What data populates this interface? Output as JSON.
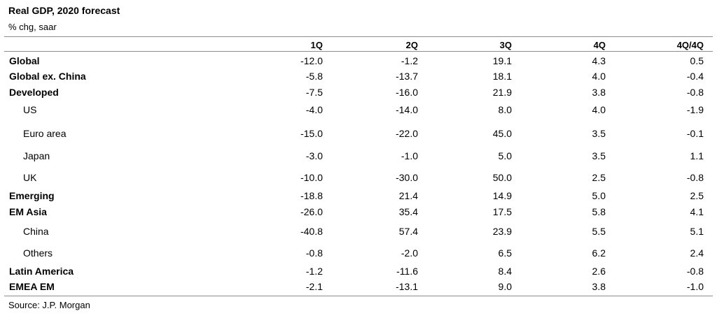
{
  "title": "Real GDP, 2020 forecast",
  "subtitle": "% chg, saar",
  "source": "Source: J.P. Morgan",
  "chart_data": {
    "type": "table",
    "title": "Real GDP, 2020 forecast",
    "subtitle": "% chg, saar",
    "columns": [
      "1Q",
      "2Q",
      "3Q",
      "4Q",
      "4Q/4Q"
    ],
    "rows": [
      {
        "label": "Global",
        "bold": true,
        "indent": false,
        "values": [
          "-12.0",
          "-1.2",
          "19.1",
          "4.3",
          "0.5"
        ]
      },
      {
        "label": "Global ex. China",
        "bold": true,
        "indent": false,
        "values": [
          "-5.8",
          "-13.7",
          "18.1",
          "4.0",
          "-0.4"
        ]
      },
      {
        "label": "Developed",
        "bold": true,
        "indent": false,
        "values": [
          "-7.5",
          "-16.0",
          "21.9",
          "3.8",
          "-0.8"
        ]
      },
      {
        "label": "US",
        "bold": false,
        "indent": true,
        "values": [
          "-4.0",
          "-14.0",
          "8.0",
          "4.0",
          "-1.9"
        ]
      },
      {
        "label": "Euro area",
        "bold": false,
        "indent": true,
        "values": [
          "-15.0",
          "-22.0",
          "45.0",
          "3.5",
          "-0.1"
        ]
      },
      {
        "label": "Japan",
        "bold": false,
        "indent": true,
        "values": [
          "-3.0",
          "-1.0",
          "5.0",
          "3.5",
          "1.1"
        ]
      },
      {
        "label": "UK",
        "bold": false,
        "indent": true,
        "values": [
          "-10.0",
          "-30.0",
          "50.0",
          "2.5",
          "-0.8"
        ]
      },
      {
        "label": "Emerging",
        "bold": true,
        "indent": false,
        "values": [
          "-18.8",
          "21.4",
          "14.9",
          "5.0",
          "2.5"
        ]
      },
      {
        "label": "EM Asia",
        "bold": true,
        "indent": false,
        "values": [
          "-26.0",
          "35.4",
          "17.5",
          "5.8",
          "4.1"
        ]
      },
      {
        "label": "China",
        "bold": false,
        "indent": true,
        "values": [
          "-40.8",
          "57.4",
          "23.9",
          "5.5",
          "5.1"
        ]
      },
      {
        "label": "Others",
        "bold": false,
        "indent": true,
        "values": [
          "-0.8",
          "-2.0",
          "6.5",
          "6.2",
          "2.4"
        ]
      },
      {
        "label": "Latin America",
        "bold": true,
        "indent": false,
        "values": [
          "-1.2",
          "-11.6",
          "8.4",
          "2.6",
          "-0.8"
        ]
      },
      {
        "label": "EMEA EM",
        "bold": true,
        "indent": false,
        "values": [
          "-2.1",
          "-13.1",
          "9.0",
          "3.8",
          "-1.0"
        ]
      }
    ]
  }
}
